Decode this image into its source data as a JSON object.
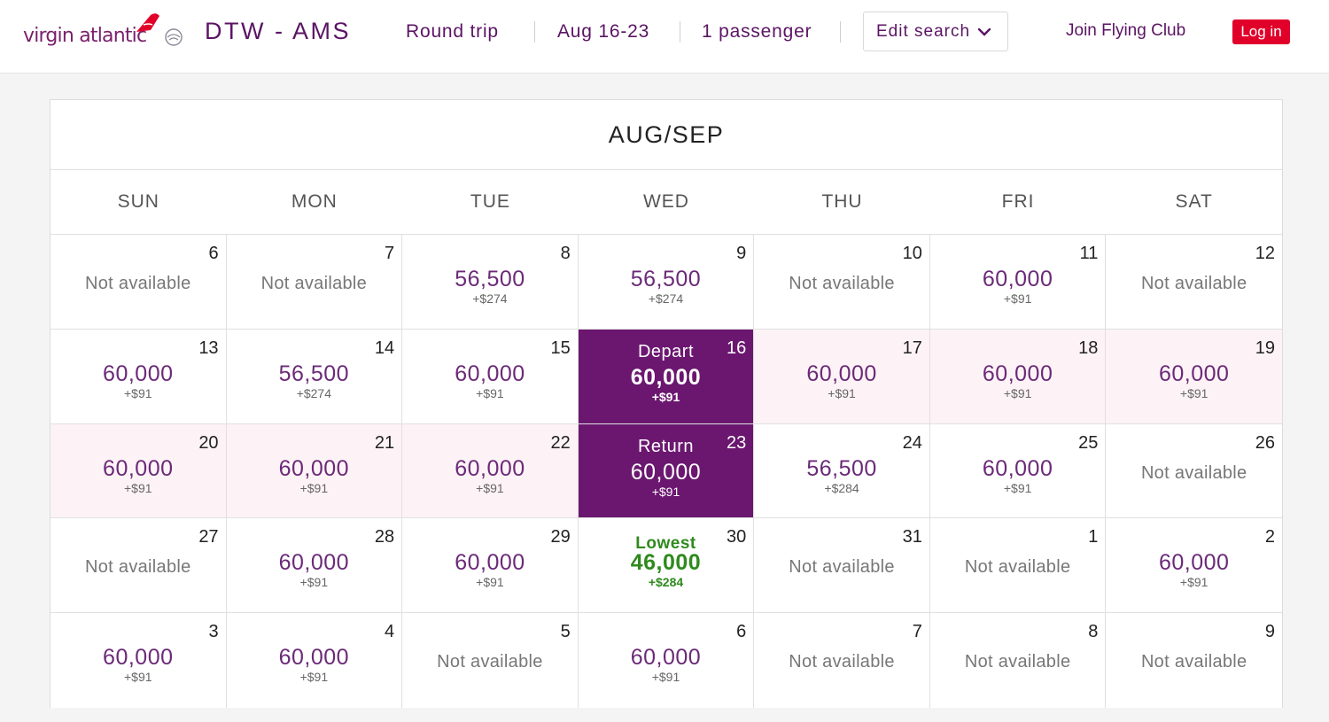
{
  "header": {
    "logo_text": "virgin atlantic",
    "route": "DTW - AMS",
    "trip_type": "Round trip",
    "dates": "Aug 16-23",
    "passengers": "1 passenger",
    "edit_search_label": "Edit search",
    "join_label": "Join Flying Club",
    "login_label": "Log in",
    "colors": {
      "brand_purple": "#5b1464",
      "login_red": "#e1002a"
    }
  },
  "calendar": {
    "month_label": "AUG/SEP",
    "weekdays": [
      "SUN",
      "MON",
      "TUE",
      "WED",
      "THU",
      "FRI",
      "SAT"
    ],
    "not_available_label": "Not available",
    "cells": [
      {
        "day": "6",
        "available": false
      },
      {
        "day": "7",
        "available": false
      },
      {
        "day": "8",
        "price": "56,500",
        "tax": "+$274"
      },
      {
        "day": "9",
        "price": "56,500",
        "tax": "+$274"
      },
      {
        "day": "10",
        "available": false
      },
      {
        "day": "11",
        "price": "60,000",
        "tax": "+$91"
      },
      {
        "day": "12",
        "available": false
      },
      {
        "day": "13",
        "price": "60,000",
        "tax": "+$91"
      },
      {
        "day": "14",
        "price": "56,500",
        "tax": "+$274"
      },
      {
        "day": "15",
        "price": "60,000",
        "tax": "+$91"
      },
      {
        "day": "16",
        "price": "60,000",
        "tax": "+$91",
        "tag": "Depart",
        "state": "depart"
      },
      {
        "day": "17",
        "price": "60,000",
        "tax": "+$91",
        "state": "range"
      },
      {
        "day": "18",
        "price": "60,000",
        "tax": "+$91",
        "state": "range"
      },
      {
        "day": "19",
        "price": "60,000",
        "tax": "+$91",
        "state": "range"
      },
      {
        "day": "20",
        "price": "60,000",
        "tax": "+$91",
        "state": "range"
      },
      {
        "day": "21",
        "price": "60,000",
        "tax": "+$91",
        "state": "range"
      },
      {
        "day": "22",
        "price": "60,000",
        "tax": "+$91",
        "state": "range"
      },
      {
        "day": "23",
        "price": "60,000",
        "tax": "+$91",
        "tag": "Return",
        "state": "return"
      },
      {
        "day": "24",
        "price": "56,500",
        "tax": "+$284"
      },
      {
        "day": "25",
        "price": "60,000",
        "tax": "+$91"
      },
      {
        "day": "26",
        "available": false
      },
      {
        "day": "27",
        "available": false
      },
      {
        "day": "28",
        "price": "60,000",
        "tax": "+$91"
      },
      {
        "day": "29",
        "price": "60,000",
        "tax": "+$91"
      },
      {
        "day": "30",
        "price": "46,000",
        "tax": "+$284",
        "tag": "Lowest",
        "state": "lowest"
      },
      {
        "day": "31",
        "available": false
      },
      {
        "day": "1",
        "available": false
      },
      {
        "day": "2",
        "price": "60,000",
        "tax": "+$91"
      },
      {
        "day": "3",
        "price": "60,000",
        "tax": "+$91"
      },
      {
        "day": "4",
        "price": "60,000",
        "tax": "+$91"
      },
      {
        "day": "5",
        "available": false
      },
      {
        "day": "6",
        "price": "60,000",
        "tax": "+$91"
      },
      {
        "day": "7",
        "available": false
      },
      {
        "day": "8",
        "available": false
      },
      {
        "day": "9",
        "available": false
      }
    ]
  }
}
